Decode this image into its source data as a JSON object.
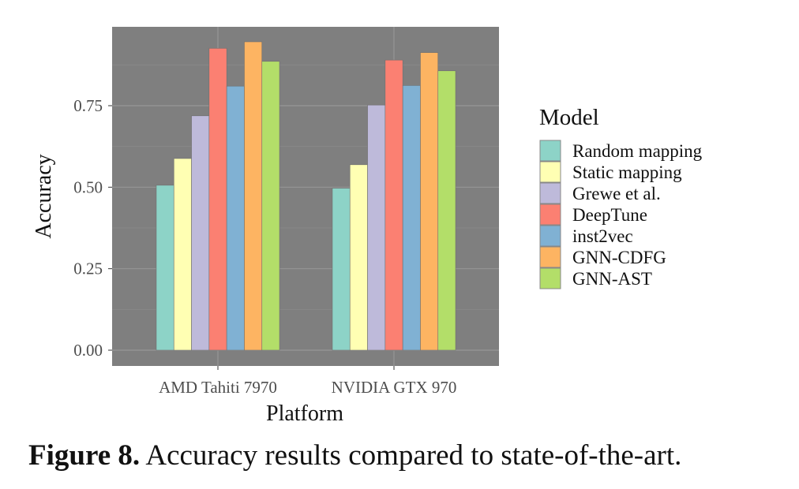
{
  "chart_data": {
    "type": "bar",
    "xlabel": "Platform",
    "ylabel": "Accuracy",
    "ylim": [
      0,
      0.95
    ],
    "yticks": [
      "0.00",
      "0.25",
      "0.50",
      "0.75"
    ],
    "ytick_values": [
      0,
      0.25,
      0.5,
      0.75
    ],
    "grid": true,
    "legend_position": "right",
    "legend_title": "Model",
    "categories": [
      "AMD Tahiti 7970",
      "NVIDIA GTX 970"
    ],
    "series": [
      {
        "name": "Random mapping",
        "color": "#8dd3c7",
        "values": [
          0.506,
          0.497
        ]
      },
      {
        "name": "Static mapping",
        "color": "#ffffb3",
        "values": [
          0.588,
          0.569
        ]
      },
      {
        "name": "Grewe et al.",
        "color": "#bebada",
        "values": [
          0.719,
          0.752
        ]
      },
      {
        "name": "DeepTune",
        "color": "#fb8072",
        "values": [
          0.926,
          0.89
        ]
      },
      {
        "name": "inst2vec",
        "color": "#80b1d3",
        "values": [
          0.81,
          0.812
        ]
      },
      {
        "name": "GNN-CDFG",
        "color": "#fdb462",
        "values": [
          0.946,
          0.913
        ]
      },
      {
        "name": "GNN-AST",
        "color": "#b3de69",
        "values": [
          0.886,
          0.857
        ]
      }
    ]
  },
  "caption": {
    "label": "Figure 8.",
    "text": "Accuracy results compared to state-of-the-art."
  }
}
